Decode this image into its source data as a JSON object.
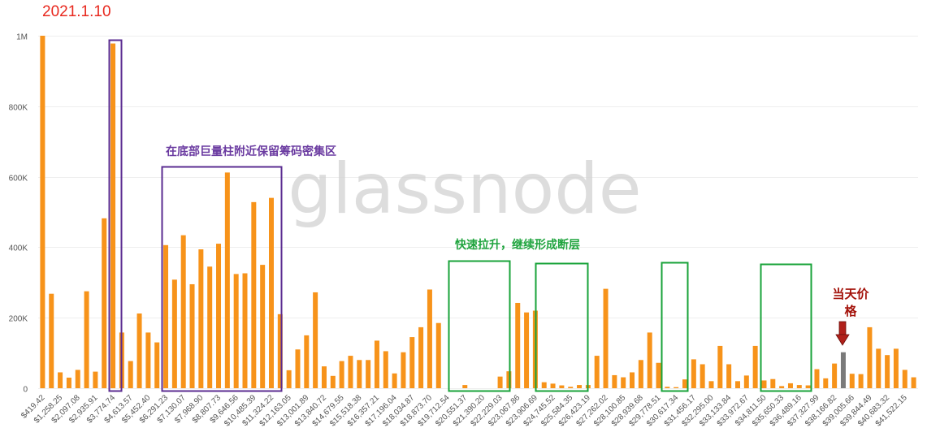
{
  "date_label": "2021.1.10",
  "watermark": "glassnode",
  "annotations": {
    "bottom_cluster": "在底部巨量柱附近保留筹码密集区",
    "fast_rise": "快速拉升，继续形成断层",
    "current_price": "当天价格"
  },
  "colors": {
    "bar": "#f7931a",
    "current_bar": "#7a7a7a",
    "purple_box": "#5b2c91",
    "green_box": "#18a33a",
    "arrow": "#b0201a",
    "grid": "#eeeeee"
  },
  "chart_data": {
    "type": "bar",
    "title": "",
    "xlabel": "",
    "ylabel": "",
    "ylim": [
      0,
      1000000
    ],
    "yticks": [
      0,
      200000,
      400000,
      600000,
      800000,
      1000000
    ],
    "ytick_labels": [
      "0",
      "200K",
      "400K",
      "600K",
      "800K",
      "1M"
    ],
    "grid": true,
    "xtick_labels": [
      "$419.42",
      "$1,258.25",
      "$2,097.08",
      "$2,935.91",
      "$3,774.74",
      "$4,613.57",
      "$5,452.40",
      "$6,291.23",
      "$7,130.07",
      "$7,968.90",
      "$8,807.73",
      "$9,646.56",
      "$10,485.39",
      "$11,324.22",
      "$12,163.05",
      "$13,001.89",
      "$13,840.72",
      "$14,679.55",
      "$15,518.38",
      "$16,357.21",
      "$17,196.04",
      "$18,034.87",
      "$18,873.70",
      "$19,712.54",
      "$20,551.37",
      "$21,390.20",
      "$22,229.03",
      "$23,067.86",
      "$23,906.69",
      "$24,745.52",
      "$25,584.35",
      "$26,423.19",
      "$27,262.02",
      "$28,100.85",
      "$28,939.68",
      "$29,778.51",
      "$30,617.34",
      "$31,456.17",
      "$32,295.00",
      "$33,133.84",
      "$33,972.67",
      "$34,811.50",
      "$35,650.33",
      "$36,489.16",
      "$37,327.99",
      "$38,166.82",
      "$39,005.66",
      "$39,844.49",
      "$40,683.32",
      "$41,522.15"
    ],
    "x_start": 419.42,
    "bin_width": 419.4156,
    "values": [
      1000000,
      268000,
      45000,
      30000,
      52000,
      275000,
      47000,
      482000,
      978000,
      158000,
      77000,
      212000,
      158000,
      130000,
      406000,
      308000,
      434000,
      295000,
      394000,
      345000,
      410000,
      612000,
      324000,
      326000,
      528000,
      350000,
      540000,
      210000,
      51000,
      110000,
      150000,
      272000,
      62000,
      35000,
      77000,
      92000,
      80000,
      80000,
      135000,
      105000,
      42000,
      102000,
      145000,
      173000,
      280000,
      185000,
      0,
      0,
      9000,
      0,
      0,
      0,
      33000,
      48000,
      242000,
      215000,
      220000,
      17000,
      13000,
      8000,
      4000,
      9000,
      9000,
      92000,
      282000,
      37000,
      31000,
      45000,
      80000,
      158000,
      72000,
      4000,
      3000,
      25000,
      82000,
      68000,
      20000,
      120000,
      68000,
      20000,
      36000,
      120000,
      22000,
      26000,
      6000,
      14000,
      9000,
      8000,
      54000,
      28000,
      70000,
      102000,
      41000,
      40000,
      173000,
      112000,
      94000,
      112000,
      52000,
      31000
    ],
    "current_price_index": 91
  }
}
